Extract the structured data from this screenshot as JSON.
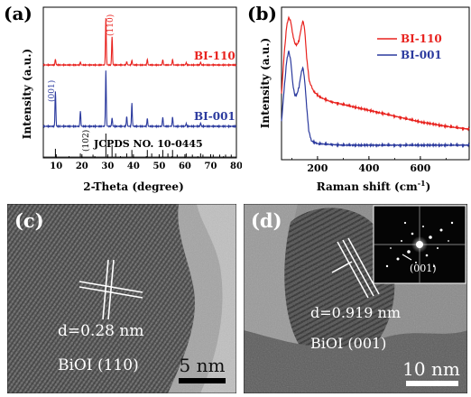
{
  "panel_a": {
    "letter": "(a)",
    "xlabel": "2-Theta (degree)",
    "ylabel": "Intensity (a.u.)",
    "xticks": [
      "10",
      "20",
      "30",
      "40",
      "50",
      "60",
      "70",
      "80"
    ],
    "ref_label": "JCPDS NO. 10-0445",
    "series_labels": [
      "BI-110",
      "BI-001"
    ],
    "peak_labels": [
      "(110)",
      "(001)",
      "(102)"
    ],
    "colors": {
      "BI-110": "#e8221e",
      "BI-001": "#2b3a9e",
      "ref": "#000000",
      "axis": "#000000"
    }
  },
  "panel_b": {
    "letter": "(b)",
    "xlabel": "Raman shift (cm",
    "xlabel_sup": "-1",
    "xlabel_close": ")",
    "ylabel": "Intensity (a.u.)",
    "xticks": [
      "200",
      "400",
      "600"
    ],
    "legend": [
      {
        "label": "BI-110",
        "color": "#e8221e"
      },
      {
        "label": "BI-001",
        "color": "#2b3a9e"
      }
    ]
  },
  "panel_c": {
    "letter": "(c)",
    "d_spacing": "d=0.28 nm",
    "plane": "BiOI (110)",
    "scale": "5 nm"
  },
  "panel_d": {
    "letter": "(d)",
    "d_spacing": "d=0.919 nm",
    "plane": "BiOI (001)",
    "scale": "10 nm",
    "fft_label": "(001)"
  },
  "chart_data": [
    {
      "type": "line",
      "panel": "a",
      "xlabel": "2-Theta (degree)",
      "ylabel": "Intensity (a.u.)",
      "xlim": [
        5,
        80
      ],
      "yscale": "arbitrary, stacked offsets",
      "series": [
        {
          "name": "BI-110",
          "color": "#e8221e",
          "peaks": [
            {
              "x": 9.7,
              "y": 0.12
            },
            {
              "x": 19.4,
              "y": 0.06
            },
            {
              "x": 29.3,
              "y": 1.0
            },
            {
              "x": 31.7,
              "y": 0.6
            },
            {
              "x": 37.4,
              "y": 0.07
            },
            {
              "x": 39.4,
              "y": 0.1
            },
            {
              "x": 45.4,
              "y": 0.12
            },
            {
              "x": 51.4,
              "y": 0.11
            },
            {
              "x": 55.2,
              "y": 0.12
            },
            {
              "x": 60.5,
              "y": 0.05
            },
            {
              "x": 66.1,
              "y": 0.06
            }
          ]
        },
        {
          "name": "BI-001",
          "color": "#2b3a9e",
          "peaks": [
            {
              "x": 9.7,
              "y": 0.62
            },
            {
              "x": 19.4,
              "y": 0.27
            },
            {
              "x": 29.3,
              "y": 1.0
            },
            {
              "x": 31.7,
              "y": 0.15
            },
            {
              "x": 37.4,
              "y": 0.18
            },
            {
              "x": 39.4,
              "y": 0.42
            },
            {
              "x": 45.4,
              "y": 0.14
            },
            {
              "x": 51.4,
              "y": 0.16
            },
            {
              "x": 55.2,
              "y": 0.17
            },
            {
              "x": 60.5,
              "y": 0.05
            },
            {
              "x": 66.1,
              "y": 0.06
            }
          ]
        }
      ],
      "reference": {
        "name": "JCPDS NO. 10-0445",
        "lines": [
          {
            "x": 9.7,
            "h": 0.35
          },
          {
            "x": 19.4,
            "h": 0.15
          },
          {
            "x": 24.3,
            "h": 0.1
          },
          {
            "x": 29.3,
            "h": 1.0
          },
          {
            "x": 31.7,
            "h": 0.5
          },
          {
            "x": 33.1,
            "h": 0.15
          },
          {
            "x": 37.4,
            "h": 0.15
          },
          {
            "x": 39.4,
            "h": 0.3
          },
          {
            "x": 45.4,
            "h": 0.3
          },
          {
            "x": 47.1,
            "h": 0.15
          },
          {
            "x": 51.4,
            "h": 0.3
          },
          {
            "x": 53.4,
            "h": 0.15
          },
          {
            "x": 55.2,
            "h": 0.3
          },
          {
            "x": 57.0,
            "h": 0.1
          },
          {
            "x": 60.5,
            "h": 0.15
          },
          {
            "x": 62.9,
            "h": 0.1
          },
          {
            "x": 66.1,
            "h": 0.15
          },
          {
            "x": 67.0,
            "h": 0.1
          },
          {
            "x": 71.0,
            "h": 0.1
          },
          {
            "x": 73.5,
            "h": 0.1
          },
          {
            "x": 75.8,
            "h": 0.1
          },
          {
            "x": 78.0,
            "h": 0.1
          }
        ]
      }
    },
    {
      "type": "line",
      "panel": "b",
      "xlabel": "Raman shift (cm-1)",
      "ylabel": "Intensity (a.u.)",
      "xlim": [
        60,
        790
      ],
      "series": [
        {
          "name": "BI-110",
          "color": "#e8221e",
          "points": [
            [
              60,
              0.45
            ],
            [
              70,
              0.72
            ],
            [
              80,
              0.92
            ],
            [
              88,
              0.98
            ],
            [
              96,
              0.95
            ],
            [
              104,
              0.86
            ],
            [
              112,
              0.8
            ],
            [
              120,
              0.79
            ],
            [
              128,
              0.82
            ],
            [
              136,
              0.9
            ],
            [
              143,
              0.96
            ],
            [
              150,
              0.9
            ],
            [
              158,
              0.7
            ],
            [
              168,
              0.54
            ],
            [
              185,
              0.47
            ],
            [
              210,
              0.43
            ],
            [
              250,
              0.4
            ],
            [
              300,
              0.38
            ],
            [
              400,
              0.34
            ],
            [
              500,
              0.3
            ],
            [
              600,
              0.26
            ],
            [
              700,
              0.23
            ],
            [
              790,
              0.21
            ]
          ]
        },
        {
          "name": "BI-001",
          "color": "#2b3a9e",
          "points": [
            [
              60,
              0.26
            ],
            [
              70,
              0.48
            ],
            [
              80,
              0.68
            ],
            [
              88,
              0.75
            ],
            [
              96,
              0.68
            ],
            [
              104,
              0.52
            ],
            [
              112,
              0.44
            ],
            [
              120,
              0.45
            ],
            [
              128,
              0.5
            ],
            [
              136,
              0.59
            ],
            [
              143,
              0.64
            ],
            [
              150,
              0.55
            ],
            [
              158,
              0.36
            ],
            [
              166,
              0.2
            ],
            [
              176,
              0.13
            ],
            [
              200,
              0.11
            ],
            [
              300,
              0.1
            ],
            [
              400,
              0.1
            ],
            [
              500,
              0.1
            ],
            [
              600,
              0.1
            ],
            [
              700,
              0.1
            ],
            [
              790,
              0.1
            ]
          ]
        }
      ]
    }
  ]
}
